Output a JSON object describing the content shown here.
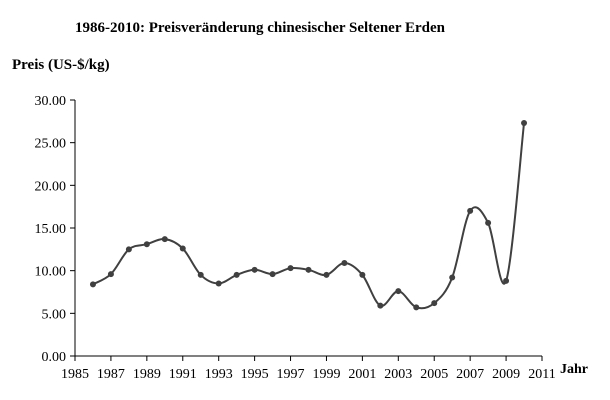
{
  "chart_data": {
    "type": "line",
    "title": "1986-2010: Preisveränderung chinesischer Seltener Erden",
    "ylabel": "Preis (US-$/kg)",
    "xlabel": "Jahr",
    "xlim": [
      1985,
      2011
    ],
    "ylim": [
      0,
      30
    ],
    "x_ticks": [
      "1985",
      "1987",
      "1989",
      "1991",
      "1993",
      "1995",
      "1997",
      "1999",
      "2001",
      "2003",
      "2005",
      "2007",
      "2009",
      "2011"
    ],
    "y_ticks": [
      "0.00",
      "5.00",
      "10.00",
      "15.00",
      "20.00",
      "25.00",
      "30.00"
    ],
    "grid": false,
    "line_color": "#404040",
    "series": [
      {
        "x": [
          1986,
          1987,
          1988,
          1989,
          1990,
          1991,
          1992,
          1993,
          1994,
          1995,
          1996,
          1997,
          1998,
          1999,
          2000,
          2001,
          2002,
          2003,
          2004,
          2005,
          2006,
          2007,
          2008,
          2009,
          2010
        ],
        "y": [
          8.4,
          9.6,
          12.5,
          13.1,
          13.7,
          12.6,
          9.5,
          8.5,
          9.5,
          10.1,
          9.6,
          10.3,
          10.1,
          9.5,
          10.9,
          9.5,
          5.9,
          7.6,
          5.7,
          6.2,
          9.2,
          17.0,
          15.6,
          8.8,
          27.3
        ]
      }
    ]
  }
}
